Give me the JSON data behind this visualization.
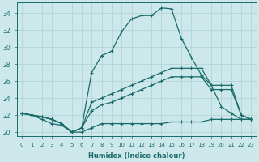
{
  "xlabel": "Humidex (Indice chaleur)",
  "xlim": [
    -0.5,
    23.5
  ],
  "ylim": [
    19.5,
    35.2
  ],
  "xticks": [
    0,
    1,
    2,
    3,
    4,
    5,
    6,
    7,
    8,
    9,
    10,
    11,
    12,
    13,
    14,
    15,
    16,
    17,
    18,
    19,
    20,
    21,
    22,
    23
  ],
  "yticks": [
    20,
    22,
    24,
    26,
    28,
    30,
    32,
    34
  ],
  "bg_color": "#cce8ea",
  "line_color": "#1a6b6b",
  "grid_color": "#b0d0d2",
  "line1_x": [
    0,
    1,
    2,
    3,
    4,
    5,
    6,
    7,
    8,
    9,
    10,
    11,
    12,
    13,
    14,
    15,
    16,
    17,
    18,
    19,
    20,
    21,
    22,
    23
  ],
  "line1_y": [
    22.2,
    22.0,
    21.8,
    21.5,
    21.0,
    20.0,
    20.5,
    27.0,
    29.0,
    29.5,
    31.8,
    33.3,
    33.7,
    33.7,
    34.6,
    34.5,
    31.0,
    28.8,
    26.7,
    25.5,
    23.0,
    22.2,
    21.5,
    21.5
  ],
  "line2_x": [
    0,
    1,
    2,
    3,
    4,
    5,
    6,
    7,
    8,
    9,
    10,
    11,
    12,
    13,
    14,
    15,
    16,
    17,
    18,
    19,
    20,
    21,
    22,
    23
  ],
  "line2_y": [
    22.2,
    22.0,
    21.8,
    21.5,
    21.0,
    20.0,
    20.5,
    23.5,
    24.0,
    24.5,
    25.0,
    25.5,
    26.0,
    26.5,
    27.0,
    27.5,
    27.5,
    27.5,
    27.5,
    25.5,
    25.5,
    25.5,
    22.0,
    21.5
  ],
  "line3_x": [
    0,
    1,
    2,
    3,
    4,
    5,
    6,
    7,
    8,
    9,
    10,
    11,
    12,
    13,
    14,
    15,
    16,
    17,
    18,
    19,
    20,
    21,
    22,
    23
  ],
  "line3_y": [
    22.2,
    22.0,
    21.8,
    21.5,
    21.0,
    20.0,
    20.5,
    22.5,
    23.2,
    23.5,
    24.0,
    24.5,
    25.0,
    25.5,
    26.0,
    26.5,
    26.5,
    26.5,
    26.5,
    25.0,
    25.0,
    25.0,
    22.0,
    21.5
  ],
  "line4_x": [
    0,
    1,
    2,
    3,
    4,
    5,
    6,
    7,
    8,
    9,
    10,
    11,
    12,
    13,
    14,
    15,
    16,
    17,
    18,
    19,
    20,
    21,
    22,
    23
  ],
  "line4_y": [
    22.2,
    22.0,
    21.5,
    21.0,
    20.8,
    20.0,
    20.0,
    20.5,
    21.0,
    21.0,
    21.0,
    21.0,
    21.0,
    21.0,
    21.0,
    21.2,
    21.2,
    21.2,
    21.2,
    21.5,
    21.5,
    21.5,
    21.5,
    21.5
  ]
}
